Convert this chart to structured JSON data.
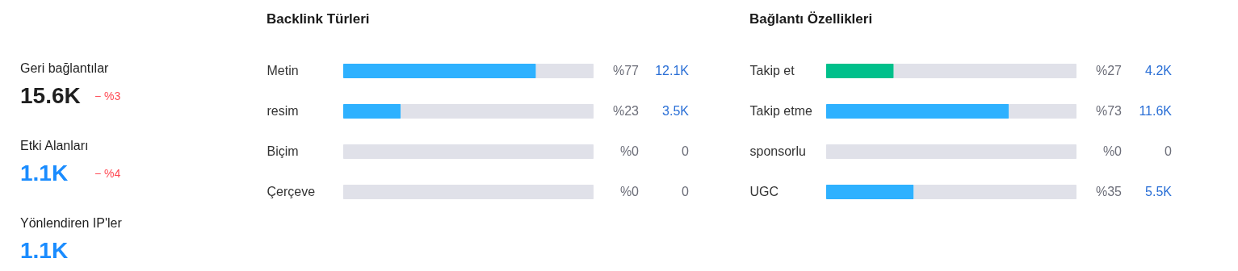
{
  "chart_data": [
    {
      "type": "other",
      "annotations": [
        "Geri bağlantılar",
        "15.6K",
        "− %3",
        "Etki Alanları",
        "1.1K",
        "− %4",
        "Yönlendiren IP'ler",
        "1.1K"
      ]
    },
    {
      "type": "bar",
      "orientation": "horizontal",
      "stacked": true,
      "title": "Backlink Türleri",
      "categories": [
        "Metin",
        "resim",
        "Biçim",
        "Çerçeve"
      ],
      "xlim": [
        0,
        100
      ],
      "tick_labels": "y",
      "series": [
        {
          "colors": [
            "#2eb1ff",
            "#2eb1ff",
            "#2eb1ff",
            "#2eb1ff"
          ],
          "values": [
            77,
            23,
            0,
            0
          ],
          "value_labels": [
            "%77",
            "%23",
            "%0",
            "%0"
          ]
        },
        {
          "color": "#e0e1e9",
          "values": [
            23,
            77,
            100,
            100
          ]
        }
      ],
      "annotations": [
        "12.1K",
        "3.5K",
        "0",
        "0"
      ]
    },
    {
      "type": "bar",
      "orientation": "horizontal",
      "stacked": true,
      "title": "Bağlantı Özellikleri",
      "categories": [
        "Takip et",
        "Takip etme",
        "sponsorlu",
        "UGC"
      ],
      "xlim": [
        0,
        100
      ],
      "tick_labels": "y",
      "series": [
        {
          "colors": [
            "#00c08b",
            "#2eb1ff",
            "#2eb1ff",
            "#2eb1ff"
          ],
          "values": [
            27,
            73,
            0,
            35
          ],
          "value_labels": [
            "%27",
            "%73",
            "%0",
            "%35"
          ]
        },
        {
          "color": "#e0e1e9",
          "values": [
            73,
            27,
            100,
            65
          ]
        }
      ],
      "annotations": [
        "4.2K",
        "11.6K",
        "0",
        "5.5K"
      ]
    }
  ]
}
